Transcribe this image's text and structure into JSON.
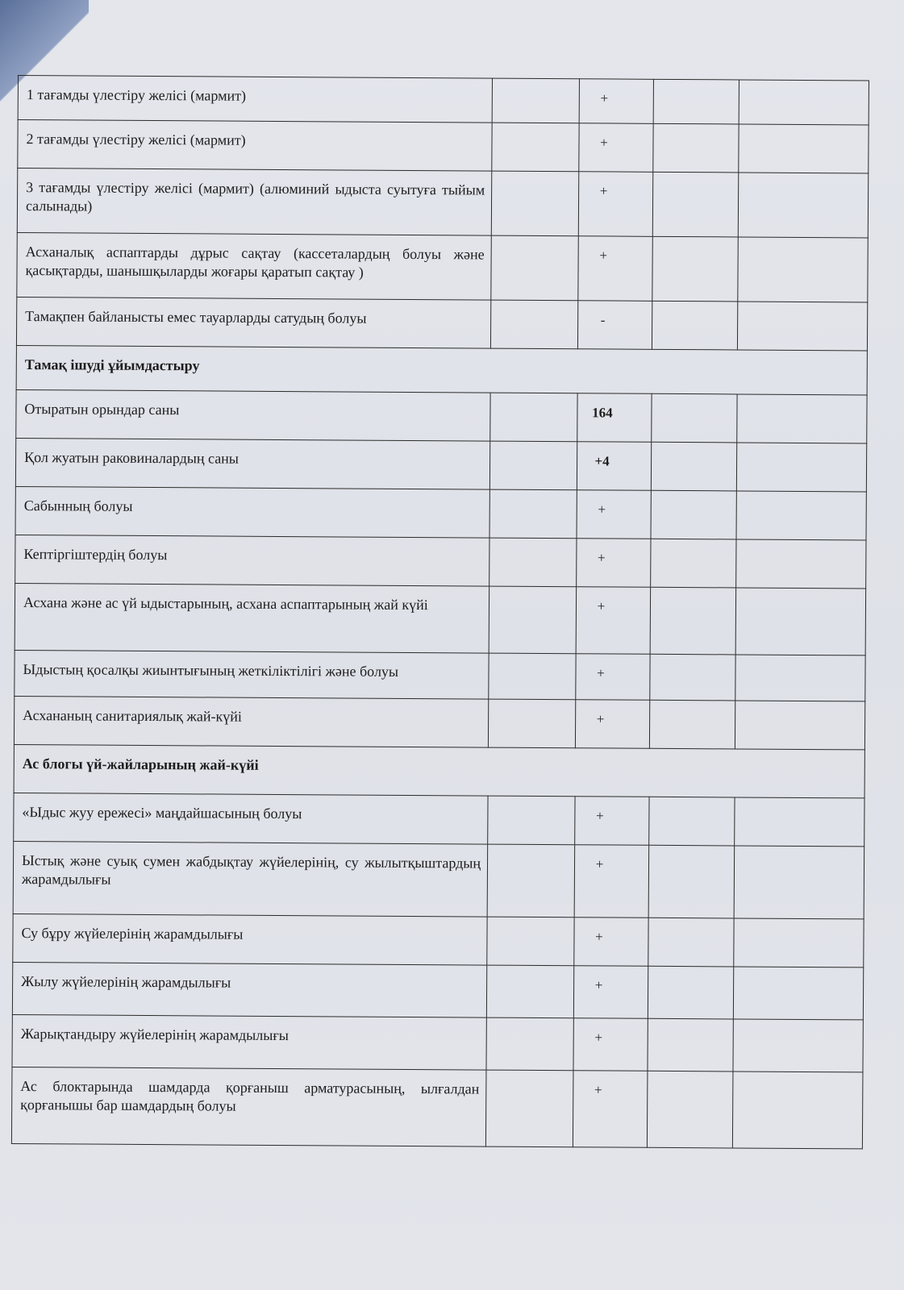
{
  "rows": [
    {
      "text": "1 тағамды үлестіру желісі  (мармит)",
      "value": "+"
    },
    {
      "text": "2 тағамды үлестіру желісі  (мармит)",
      "value": "+"
    },
    {
      "text": "3 тағамды үлестіру желісі   (мармит) (алюминий ыдыста суытуға тыйым салынады)",
      "value": "+"
    },
    {
      "text": "Асханалық аспаптарды дұрыс сақтау (кассеталардың болуы және қасықтарды, шанышқыларды жоғары қаратып сақтау )",
      "value": "+"
    },
    {
      "text": "Тамақпен байланысты емес тауарларды сатудың болуы",
      "value": "-"
    },
    {
      "section": "Тамақ ішуді ұйымдастыру"
    },
    {
      "text": "Отыратын орындар саны",
      "value": "164"
    },
    {
      "text": "Қол жуатын раковиналардың саны",
      "value": "+4"
    },
    {
      "text": "Сабынның болуы",
      "value": "+"
    },
    {
      "text": "Кептіргіштердің болуы",
      "value": "+"
    },
    {
      "text": "Асхана және ас үй ыдыстарының, асхана аспаптарының жай күйі",
      "value": "+"
    },
    {
      "text": "Ыдыстың қосалқы жиынтығының жеткіліктілігі және болуы",
      "value": "+"
    },
    {
      "text": "Асхананың санитариялық жай-күйі",
      "value": "+"
    },
    {
      "section": "Ас блогы үй-жайларының жай-күйі"
    },
    {
      "text": "«Ыдыс жуу ережесі» маңдайшасының болуы",
      "value": "+"
    },
    {
      "text": "Ыстық және суық сумен жабдықтау жүйелерінің, су жылытқыштардың жарамдылығы",
      "value": "+"
    },
    {
      "text": "Су бұру жүйелерінің жарамдылығы",
      "value": "+"
    },
    {
      "text": "Жылу жүйелерінің жарамдылығы",
      "value": "+"
    },
    {
      "text": "Жарықтандыру жүйелерінің жарамдылығы",
      "value": "+"
    },
    {
      "text": "Ас блоктарында шамдарда қорғаныш арматурасының, ылғалдан қорғанышы бар шамдардың болуы",
      "value": "+"
    }
  ]
}
